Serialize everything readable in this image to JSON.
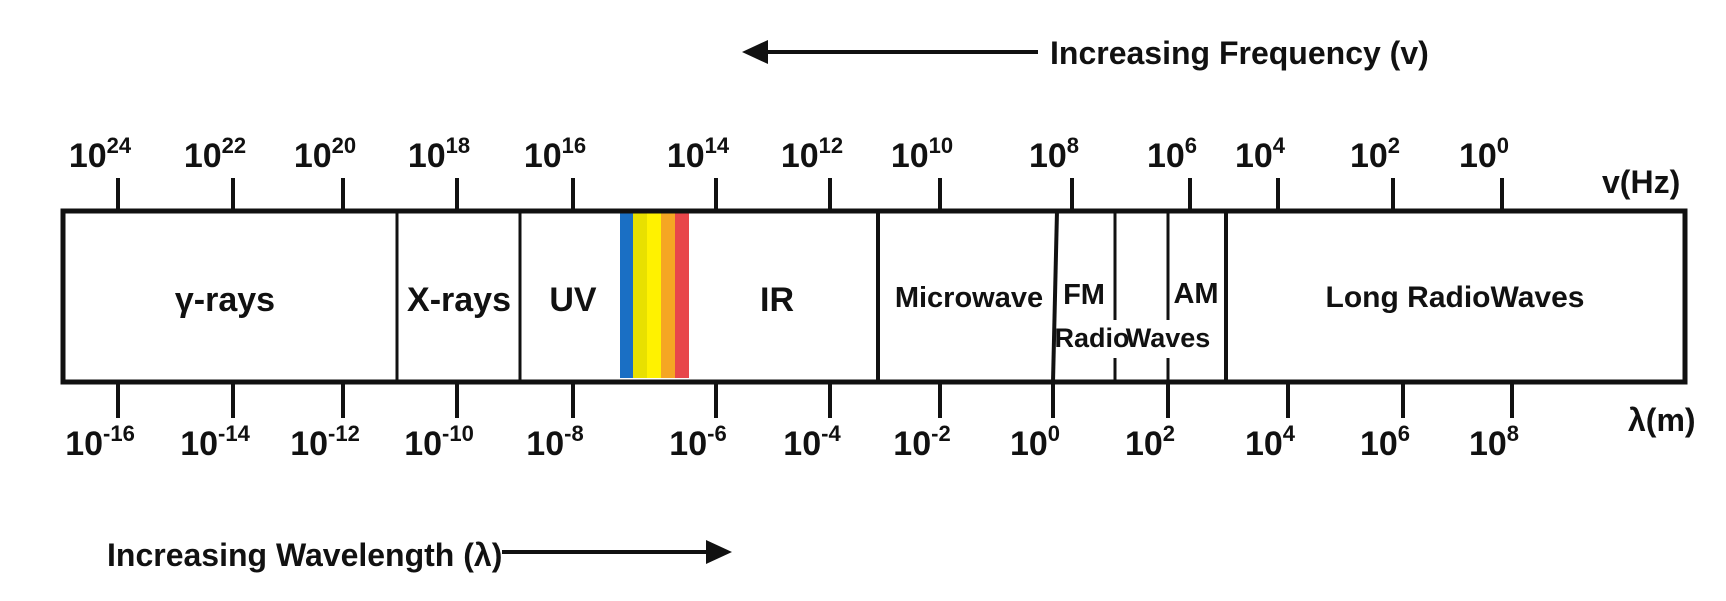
{
  "frequency_arrow": {
    "label": "Increasing Frequency (v)"
  },
  "wavelength_arrow": {
    "label": "Increasing Wavelength (λ)"
  },
  "frequency_axis": {
    "unit": "v(Hz)",
    "ticks": [
      {
        "base": "10",
        "exp": "24"
      },
      {
        "base": "10",
        "exp": "22"
      },
      {
        "base": "10",
        "exp": "20"
      },
      {
        "base": "10",
        "exp": "18"
      },
      {
        "base": "10",
        "exp": "16"
      },
      {
        "base": "10",
        "exp": "14"
      },
      {
        "base": "10",
        "exp": "12"
      },
      {
        "base": "10",
        "exp": "10"
      },
      {
        "base": "10",
        "exp": "8"
      },
      {
        "base": "10",
        "exp": "6"
      },
      {
        "base": "10",
        "exp": "4"
      },
      {
        "base": "10",
        "exp": "2"
      },
      {
        "base": "10",
        "exp": "0"
      }
    ]
  },
  "wavelength_axis": {
    "unit": "λ(m)",
    "ticks": [
      {
        "base": "10",
        "exp": "-16"
      },
      {
        "base": "10",
        "exp": "-14"
      },
      {
        "base": "10",
        "exp": "-12"
      },
      {
        "base": "10",
        "exp": "-10"
      },
      {
        "base": "10",
        "exp": "-8"
      },
      {
        "base": "10",
        "exp": "-6"
      },
      {
        "base": "10",
        "exp": "-4"
      },
      {
        "base": "10",
        "exp": "-2"
      },
      {
        "base": "10",
        "exp": "0"
      },
      {
        "base": "10",
        "exp": "2"
      },
      {
        "base": "10",
        "exp": "4"
      },
      {
        "base": "10",
        "exp": "6"
      },
      {
        "base": "10",
        "exp": "8"
      }
    ]
  },
  "bands": {
    "gamma": "γ-rays",
    "xray": "X-rays",
    "uv": "UV",
    "ir": "IR",
    "microwave": "Microwave",
    "fm_line1": "FM",
    "fm_line2": "Radio",
    "am_line1": "AM",
    "am_line2": "Waves",
    "long_radio": "Long RadioWaves"
  },
  "visible_spectrum_colors": [
    "#1a6fc4",
    "#e8e000",
    "#fff200",
    "#f5a623",
    "#e8464a"
  ]
}
